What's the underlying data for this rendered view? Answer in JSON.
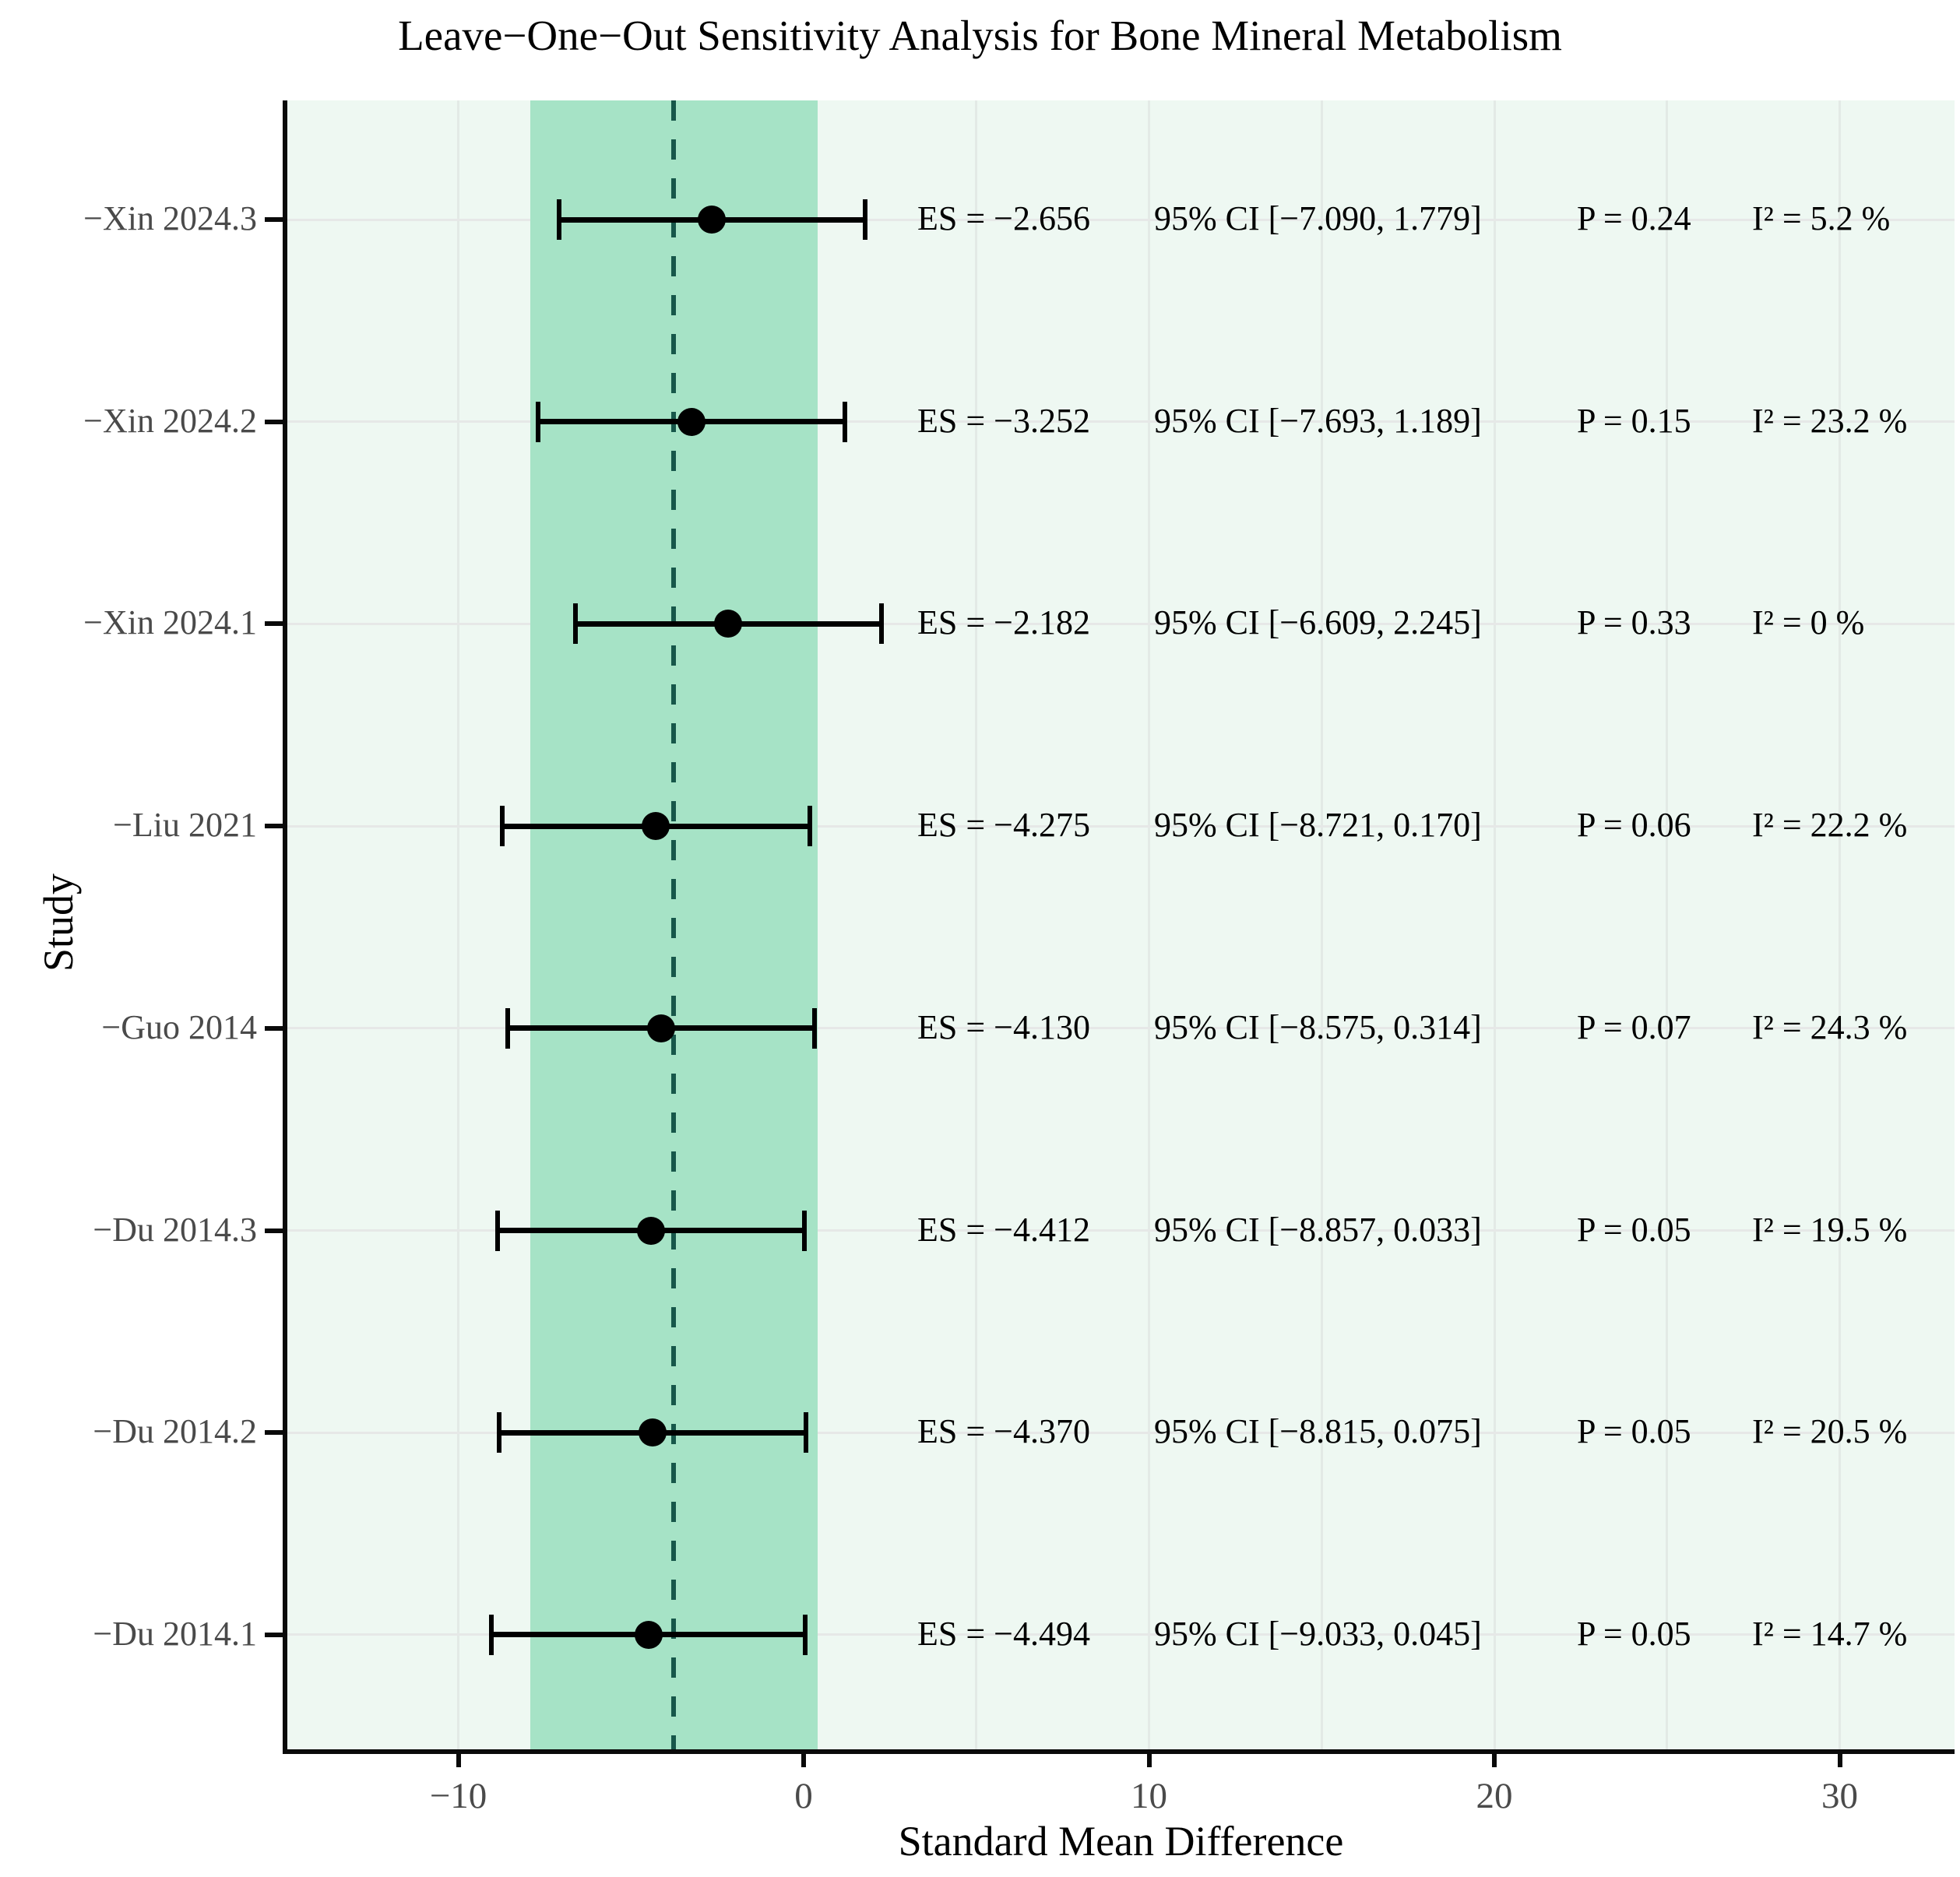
{
  "title": "Leave−One−Out Sensitivity Analysis for Bone Mineral Metabolism",
  "axes": {
    "x_label": "Standard Mean Difference",
    "y_label": "Study",
    "x_ticks": [
      {
        "label": "−10",
        "value": -10
      },
      {
        "label": "0",
        "value": 0
      },
      {
        "label": "10",
        "value": 10
      },
      {
        "label": "20",
        "value": 20
      },
      {
        "label": "30",
        "value": 30
      }
    ]
  },
  "colors": {
    "panel_background": "#eef8f2",
    "pooled_ci_band": "#a6e3c6",
    "pooled_dashed_line": "#17574a",
    "error_bar": "#000000",
    "gridline": "#e3eae6",
    "tick_label": "#4a4a4a"
  },
  "chart_data": {
    "type": "forest",
    "title": "Leave−One−Out Sensitivity Analysis for Bone Mineral Metabolism",
    "xlabel": "Standard Mean Difference",
    "ylabel": "Study",
    "x_range": [
      -15.0,
      33.3
    ],
    "x_major_ticks": [
      -10,
      0,
      10,
      20,
      30
    ],
    "x_gridline_values": [
      -10,
      -5,
      0,
      5,
      10,
      15,
      20,
      25,
      30
    ],
    "grid": "on",
    "pooled_dashed_line_x": -3.76,
    "pooled_ci_band": [
      -7.91,
      0.41
    ],
    "rows": [
      {
        "study": "−Xin 2024.3",
        "es": -2.656,
        "lo": -7.09,
        "hi": 1.779,
        "es_label": "ES = −2.656",
        "ci_label": "95% CI [−7.090, 1.779]",
        "p_label": "P = 0.24",
        "i2_label": "I² = 5.2 %"
      },
      {
        "study": "−Xin 2024.2",
        "es": -3.252,
        "lo": -7.693,
        "hi": 1.189,
        "es_label": "ES = −3.252",
        "ci_label": "95% CI [−7.693, 1.189]",
        "p_label": "P = 0.15",
        "i2_label": "I² = 23.2 %"
      },
      {
        "study": "−Xin 2024.1",
        "es": -2.182,
        "lo": -6.609,
        "hi": 2.245,
        "es_label": "ES = −2.182",
        "ci_label": "95% CI [−6.609, 2.245]",
        "p_label": "P = 0.33",
        "i2_label": "I² = 0 %"
      },
      {
        "study": "−Liu 2021",
        "es": -4.275,
        "lo": -8.721,
        "hi": 0.17,
        "es_label": "ES = −4.275",
        "ci_label": "95% CI [−8.721, 0.170]",
        "p_label": "P = 0.06",
        "i2_label": "I² = 22.2 %"
      },
      {
        "study": "−Guo 2014",
        "es": -4.13,
        "lo": -8.575,
        "hi": 0.314,
        "es_label": "ES = −4.130",
        "ci_label": "95% CI [−8.575, 0.314]",
        "p_label": "P = 0.07",
        "i2_label": "I² = 24.3 %"
      },
      {
        "study": "−Du 2014.3",
        "es": -4.412,
        "lo": -8.857,
        "hi": 0.033,
        "es_label": "ES = −4.412",
        "ci_label": "95% CI [−8.857, 0.033]",
        "p_label": "P = 0.05",
        "i2_label": "I² = 19.5 %"
      },
      {
        "study": "−Du 2014.2",
        "es": -4.37,
        "lo": -8.815,
        "hi": 0.075,
        "es_label": "ES = −4.370",
        "ci_label": "95% CI [−8.815, 0.075]",
        "p_label": "P = 0.05",
        "i2_label": "I² = 20.5 %"
      },
      {
        "study": "−Du 2014.1",
        "es": -4.494,
        "lo": -9.033,
        "hi": 0.045,
        "es_label": "ES = −4.494",
        "ci_label": "95% CI [−9.033, 0.045]",
        "p_label": "P = 0.05",
        "i2_label": "I² = 14.7 %"
      }
    ]
  }
}
